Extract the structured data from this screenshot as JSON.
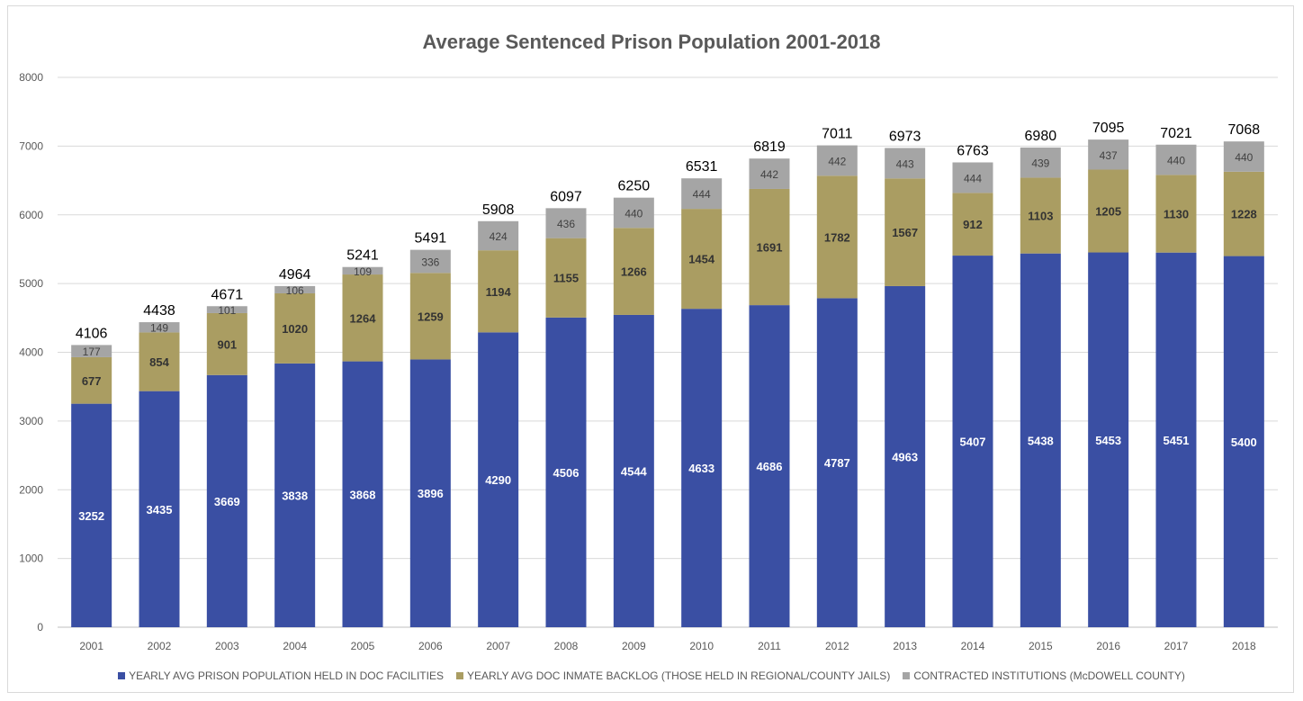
{
  "chart_data": {
    "type": "bar",
    "stacked": true,
    "title": "Average Sentenced Prison Population 2001-2018",
    "xlabel": "",
    "ylabel": "",
    "ylim": [
      0,
      8000
    ],
    "yticks": [
      0,
      1000,
      2000,
      3000,
      4000,
      5000,
      6000,
      7000,
      8000
    ],
    "grid": true,
    "legend_position": "bottom",
    "categories": [
      "2001",
      "2002",
      "2003",
      "2004",
      "2005",
      "2006",
      "2007",
      "2008",
      "2009",
      "2010",
      "2011",
      "2012",
      "2013",
      "2014",
      "2015",
      "2016",
      "2017",
      "2018"
    ],
    "series": [
      {
        "name": "YEARLY AVG PRISON POPULATION HELD IN DOC FACILITIES",
        "color": "#3a4fa3",
        "values": [
          3252,
          3435,
          3669,
          3838,
          3868,
          3896,
          4290,
          4506,
          4544,
          4633,
          4686,
          4787,
          4963,
          5407,
          5438,
          5453,
          5451,
          5400
        ]
      },
      {
        "name": "YEARLY AVG DOC INMATE BACKLOG (THOSE HELD IN REGIONAL/COUNTY JAILS)",
        "color": "#aa9d62",
        "values": [
          677,
          854,
          901,
          1020,
          1264,
          1259,
          1194,
          1155,
          1266,
          1454,
          1691,
          1782,
          1567,
          912,
          1103,
          1205,
          1130,
          1228
        ]
      },
      {
        "name": "CONTRACTED INSTITUTIONS (McDOWELL COUNTY)",
        "color": "#a5a5a5",
        "values": [
          177,
          149,
          101,
          106,
          109,
          336,
          424,
          436,
          440,
          444,
          442,
          442,
          443,
          444,
          439,
          437,
          440,
          440
        ]
      }
    ],
    "totals": [
      4106,
      4438,
      4671,
      4964,
      5241,
      5491,
      5908,
      6097,
      6250,
      6531,
      6819,
      7011,
      6973,
      6763,
      6980,
      7095,
      7021,
      7068
    ]
  }
}
